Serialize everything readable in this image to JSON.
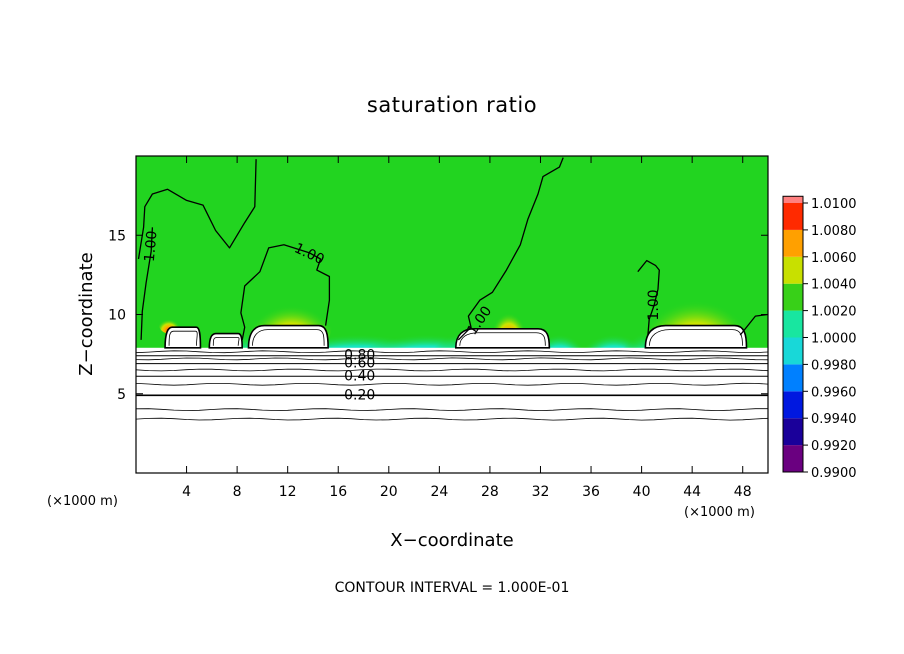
{
  "chart_data": {
    "type": "heatmap",
    "title": "saturation ratio",
    "xlabel": "X−coordinate",
    "ylabel": "Z−coordinate",
    "x_unit_label": "(×1000 m)",
    "y_unit_label": "(×1000 m)",
    "xlim": [
      0,
      50
    ],
    "ylim": [
      0,
      20
    ],
    "x_ticks": [
      4,
      8,
      12,
      16,
      20,
      24,
      28,
      32,
      36,
      40,
      44,
      48
    ],
    "y_ticks": [
      5,
      10,
      15
    ],
    "colorbar": {
      "levels": [
        "0.9900",
        "0.9920",
        "0.9940",
        "0.9960",
        "0.9980",
        "1.0000",
        "1.0020",
        "1.0040",
        "1.0060",
        "1.0080",
        "1.0100"
      ],
      "colors": [
        "#6a0080",
        "#1a009a",
        "#0018e0",
        "#0080ff",
        "#18d8d8",
        "#18e6a0",
        "#38d018",
        "#c8e000",
        "#ffa000",
        "#ff2a00",
        "#ff8080"
      ]
    },
    "background_color": "#22d420",
    "contour_labels": [
      {
        "text": "1.00",
        "x": 1.2,
        "z": 14.3,
        "angle": -85
      },
      {
        "text": "1.00",
        "x": 13.7,
        "z": 13.8,
        "angle": 25
      },
      {
        "text": "1.00",
        "x": 27.2,
        "z": 9.6,
        "angle": -55
      },
      {
        "text": "1.00",
        "x": 41.0,
        "z": 10.6,
        "angle": -90
      },
      {
        "text": "0.80",
        "x": 17.7,
        "z": 7.4,
        "angle": 0
      },
      {
        "text": "0.60",
        "x": 17.7,
        "z": 6.9,
        "angle": 0
      },
      {
        "text": "0.40",
        "x": 17.7,
        "z": 6.1,
        "angle": 0
      },
      {
        "text": "0.20",
        "x": 17.7,
        "z": 4.9,
        "angle": 0
      }
    ],
    "cloud_regions": [
      {
        "x0": 2.3,
        "x1": 5.1,
        "z0": 7.9,
        "z1": 9.2
      },
      {
        "x0": 5.8,
        "x1": 8.4,
        "z0": 7.9,
        "z1": 8.8
      },
      {
        "x0": 8.9,
        "x1": 15.2,
        "z0": 7.9,
        "z1": 9.3
      },
      {
        "x0": 25.3,
        "x1": 32.7,
        "z0": 7.9,
        "z1": 9.1
      },
      {
        "x0": 40.3,
        "x1": 48.3,
        "z0": 7.9,
        "z1": 9.3
      }
    ],
    "subsaturated_contour_levels": [
      0.2,
      0.4,
      0.6,
      0.8
    ]
  },
  "footer": {
    "contour_interval": "CONTOUR INTERVAL = 1.000E-01"
  }
}
